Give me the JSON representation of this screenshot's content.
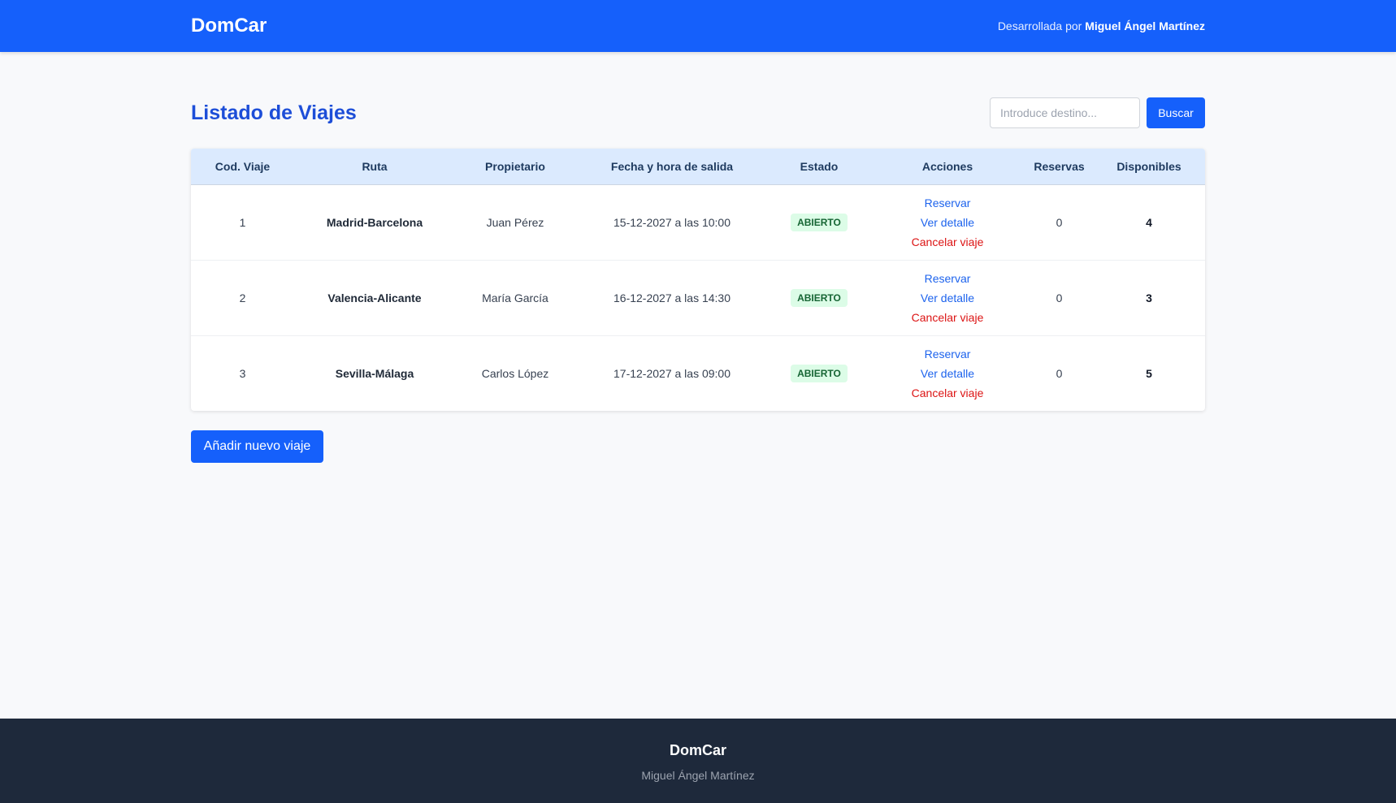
{
  "header": {
    "brand": "DomCar",
    "byline_prefix": "Desarrollada por",
    "byline_name": "Miguel Ángel Martínez"
  },
  "page": {
    "title": "Listado de Viajes"
  },
  "search": {
    "placeholder": "Introduce destino...",
    "value": "",
    "button_label": "Buscar"
  },
  "table": {
    "columns": [
      "Cod. Viaje",
      "Ruta",
      "Propietario",
      "Fecha y hora de salida",
      "Estado",
      "Acciones",
      "Reservas",
      "Disponibles"
    ],
    "action_labels": {
      "reserve": "Reservar",
      "detail": "Ver detalle",
      "cancel": "Cancelar viaje"
    },
    "rows": [
      {
        "code": "1",
        "route": "Madrid-Barcelona",
        "owner": "Juan Pérez",
        "departure": "15-12-2027 a las 10:00",
        "status": "ABIERTO",
        "reservations": "0",
        "available": "4"
      },
      {
        "code": "2",
        "route": "Valencia-Alicante",
        "owner": "María García",
        "departure": "16-12-2027 a las 14:30",
        "status": "ABIERTO",
        "reservations": "0",
        "available": "3"
      },
      {
        "code": "3",
        "route": "Sevilla-Málaga",
        "owner": "Carlos López",
        "departure": "17-12-2027 a las 09:00",
        "status": "ABIERTO",
        "reservations": "0",
        "available": "5"
      }
    ]
  },
  "actions": {
    "add_trip_label": "Añadir nuevo viaje"
  },
  "footer": {
    "brand": "DomCar",
    "author": "Miguel Ángel Martínez"
  },
  "colors": {
    "primary": "#1560fb",
    "title_blue": "#1d4ed8",
    "table_header_bg": "#dbeafe",
    "status_open_bg": "#dcfce7",
    "status_open_text": "#166534",
    "cancel_red": "#dc1414",
    "footer_bg": "#1e293b"
  }
}
